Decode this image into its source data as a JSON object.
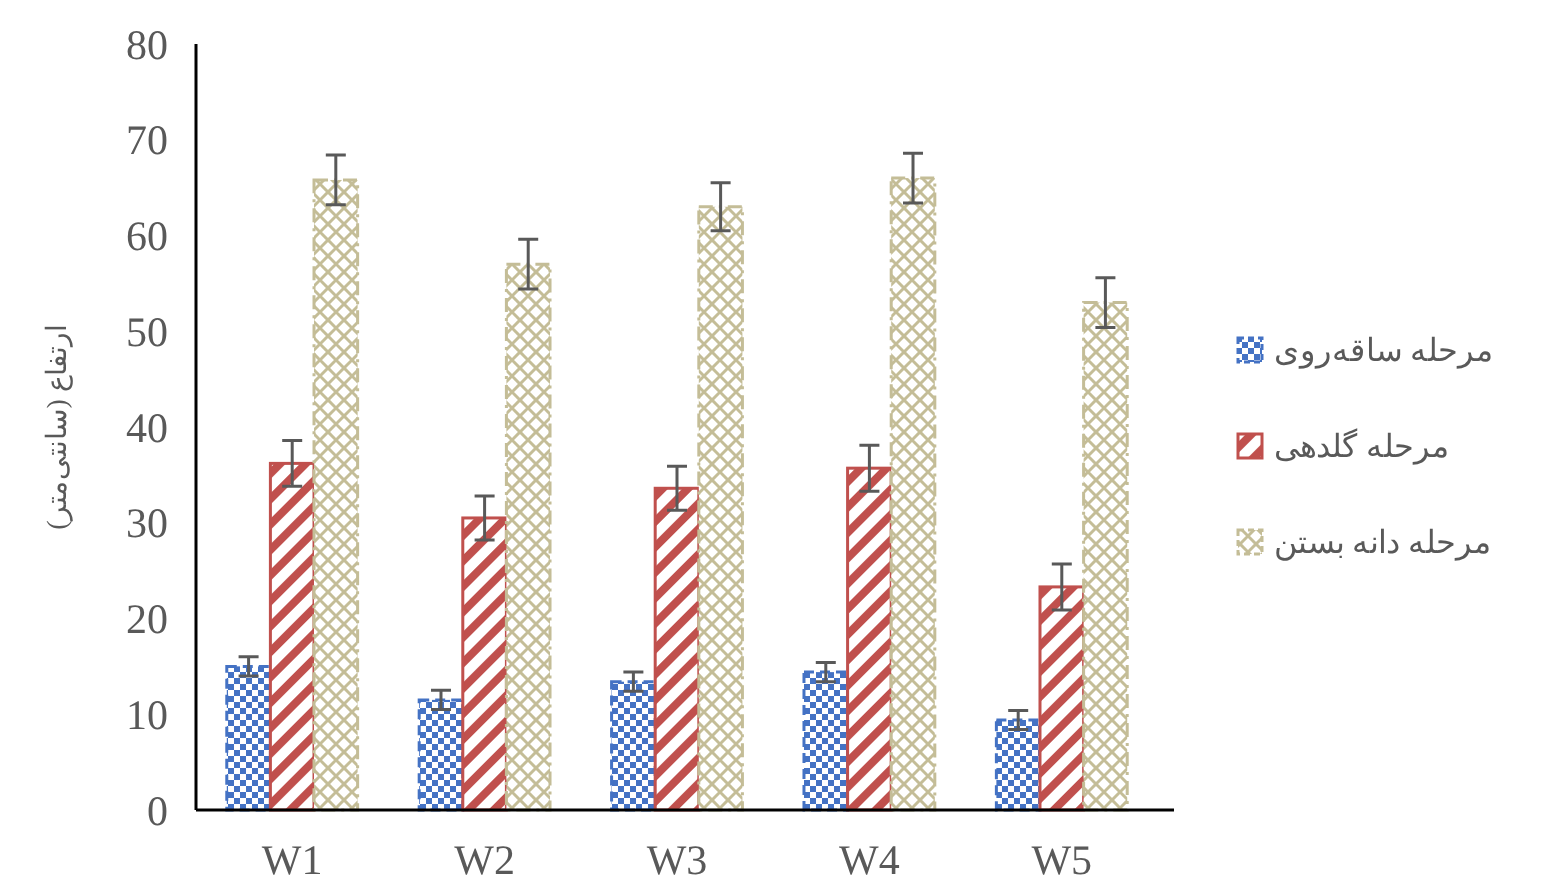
{
  "chart_data": {
    "type": "bar",
    "ylabel": "ارتفاع (سانتی‌متر)",
    "categories": [
      "W1",
      "W2",
      "W3",
      "W4",
      "W5"
    ],
    "ylim": [
      0,
      80
    ],
    "yticks": [
      0,
      10,
      20,
      30,
      40,
      50,
      60,
      70,
      80
    ],
    "grid": false,
    "legend": "right",
    "series": [
      {
        "name": "مرحله ساقه‌روی",
        "color": "#4472c4",
        "line_style": "dashed",
        "values": [
          15,
          11.5,
          13.4,
          14.4,
          9.4
        ],
        "errors": [
          1,
          1,
          1,
          1,
          1
        ]
      },
      {
        "name": "مرحله گلدهی",
        "color": "#c0504d",
        "line_style": "solid",
        "values": [
          36.2,
          30.5,
          33.6,
          35.7,
          23.3
        ],
        "errors": [
          2.4,
          2.3,
          2.3,
          2.4,
          2.4
        ]
      },
      {
        "name": "مرحله دانه بستن",
        "color": "#c4bd97",
        "line_style": "dashdot",
        "values": [
          65.8,
          57,
          63,
          66,
          53
        ],
        "errors": [
          2.6,
          2.6,
          2.5,
          2.6,
          2.6
        ]
      }
    ]
  }
}
